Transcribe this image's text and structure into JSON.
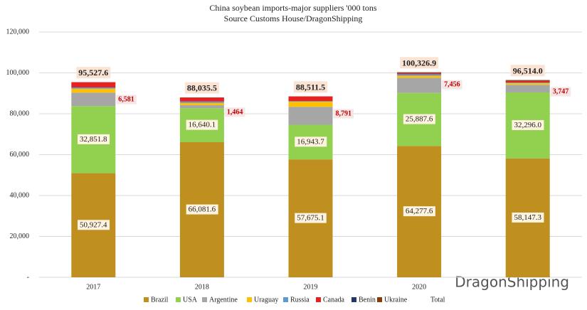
{
  "chart_data": {
    "type": "stacked_bar",
    "title": "China soybean imports-major suppliers '000 tons",
    "subtitle": "Source Customs House/DragonShipping",
    "watermark": "DragonShipping",
    "categories": [
      "2017",
      "2018",
      "2019",
      "2020",
      null
    ],
    "series": [
      {
        "name": "Brazil",
        "color": "#bf8f1f",
        "values": [
          50927.4,
          66081.6,
          57675.1,
          64277.6,
          58147.3
        ],
        "value_labels": [
          "50,927.4",
          "66,081.6",
          "57,675.1",
          "64,277.6",
          "58,147.3"
        ]
      },
      {
        "name": "USA",
        "color": "#92d050",
        "values": [
          32851.8,
          16640.1,
          16943.7,
          25887.6,
          32296.0
        ],
        "value_labels": [
          "32,851.8",
          "16,640.1",
          "16,943.7",
          "25,887.6",
          "32,296.0"
        ]
      },
      {
        "name": "Argentine",
        "color": "#a6a6a6",
        "values": [
          6581,
          1464,
          8791,
          7456,
          3747
        ],
        "value_labels": [
          "6,581",
          "1,464",
          "8,791",
          "7,456",
          "3,747"
        ]
      },
      {
        "name": "Uraguay",
        "color": "#ffc000",
        "values": [
          1900,
          1100,
          2500,
          1000,
          800
        ]
      },
      {
        "name": "Russia",
        "color": "#5b9bd5",
        "values": [
          600,
          700,
          300,
          700,
          300
        ]
      },
      {
        "name": "Canada",
        "color": "#e52222",
        "values": [
          2600,
          2000,
          2300,
          600,
          700
        ]
      },
      {
        "name": "Benin",
        "color": "#203864",
        "values": [
          0,
          0,
          0,
          200,
          100
        ]
      },
      {
        "name": "Ukraine",
        "color": "#843c0c",
        "values": [
          0,
          0,
          0,
          200,
          400
        ]
      }
    ],
    "total": {
      "name": "Total",
      "values": [
        95527.6,
        88035.5,
        88511.5,
        100326.9,
        96514.0
      ],
      "value_labels": [
        "95,527.6",
        "88,035.5",
        "88,511.5",
        "100,326.9",
        "96,514.0"
      ]
    },
    "ylim": [
      0,
      120000
    ],
    "yticks": [
      {
        "value": 0,
        "label": "-"
      },
      {
        "value": 20000,
        "label": "20,000"
      },
      {
        "value": 40000,
        "label": "40,000"
      },
      {
        "value": 60000,
        "label": "60,000"
      },
      {
        "value": 80000,
        "label": "80,000"
      },
      {
        "value": 100000,
        "label": "100,000"
      },
      {
        "value": 120000,
        "label": "120,000"
      }
    ],
    "grid": true
  }
}
